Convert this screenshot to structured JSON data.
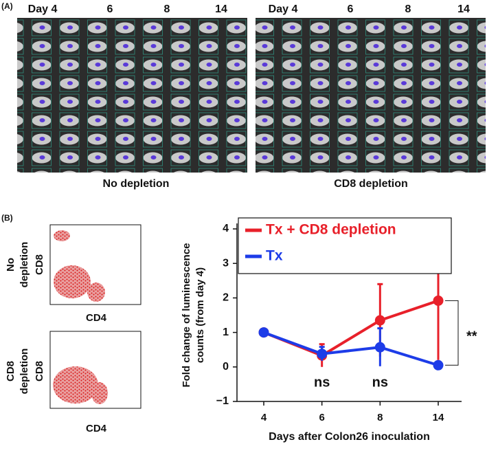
{
  "panel_a": {
    "label": "(A)",
    "groups": [
      {
        "days": [
          "Day 4",
          "6",
          "8",
          "14"
        ],
        "caption": "No depletion"
      },
      {
        "days": [
          "Day 4",
          "6",
          "8",
          "14"
        ],
        "caption": "CD8 depletion"
      }
    ]
  },
  "panel_b": {
    "label": "(B)",
    "flow": [
      {
        "group": [
          "No",
          "depletion"
        ],
        "ylabel": "CD8",
        "xlabel": "CD4"
      },
      {
        "group": [
          "CD8",
          "depletion"
        ],
        "ylabel": "CD8",
        "xlabel": "CD4"
      }
    ]
  },
  "chart_data": {
    "type": "line",
    "ylabel": [
      "Fold change of luminescence",
      "counts (from day 4)"
    ],
    "xlabel": "Days after Colon26 inoculation",
    "categories": [
      "4",
      "6",
      "8",
      "14"
    ],
    "ylim": [
      -1,
      4
    ],
    "yticks": [
      {
        "value": -1,
        "label": "−1"
      },
      0,
      1,
      2,
      3,
      4
    ],
    "legend": "upper left",
    "series": [
      {
        "name": "Tx + CD8 depletion",
        "color": "#e8202a",
        "values": [
          1,
          0.33,
          1.35,
          1.92
        ],
        "errors": [
          0,
          0.33,
          1.05,
          1.72
        ]
      },
      {
        "name": "Tx",
        "color": "#1d3ce8",
        "values": [
          1,
          0.38,
          0.57,
          0.05
        ],
        "errors": [
          0,
          0.2,
          0.55,
          0.05
        ]
      }
    ],
    "annotations": [
      "ns",
      "ns",
      "**"
    ]
  }
}
